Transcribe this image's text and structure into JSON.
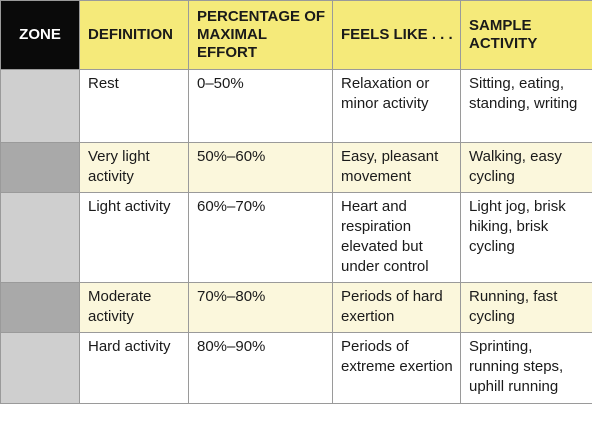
{
  "headers": {
    "zone": "ZONE",
    "definition": "DEFINITION",
    "percentage": "PERCENTAGE OF MAXIMAL EFFORT",
    "feels_like": "FEELS LIKE . . .",
    "sample": "SAMPLE ACTIVITY"
  },
  "rows": [
    {
      "zone_color": "#cfcfcf",
      "definition": "Rest",
      "percentage": "0–50%",
      "feels_like": "Relaxation or minor activity",
      "sample": "Sitting, eating, standing, writing"
    },
    {
      "zone_color": "#a9a9a9",
      "definition": "Very light activity",
      "percentage": "50%–60%",
      "feels_like": "Easy, pleasant movement",
      "sample": "Walking, easy cycling"
    },
    {
      "zone_color": "#cfcfcf",
      "definition": "Light activity",
      "percentage": "60%–70%",
      "feels_like": "Heart and respiration elevated but under control",
      "sample": "Light jog, brisk hiking, brisk cycling"
    },
    {
      "zone_color": "#a9a9a9",
      "definition": "Moderate activity",
      "percentage": "70%–80%",
      "feels_like": "Periods of hard exertion",
      "sample": "Running, fast cycling"
    },
    {
      "zone_color": "#cfcfcf",
      "definition": "Hard activity",
      "percentage": "80%–90%",
      "feels_like": "Periods of extreme exertion",
      "sample": "Sprinting, running steps, uphill running"
    }
  ]
}
